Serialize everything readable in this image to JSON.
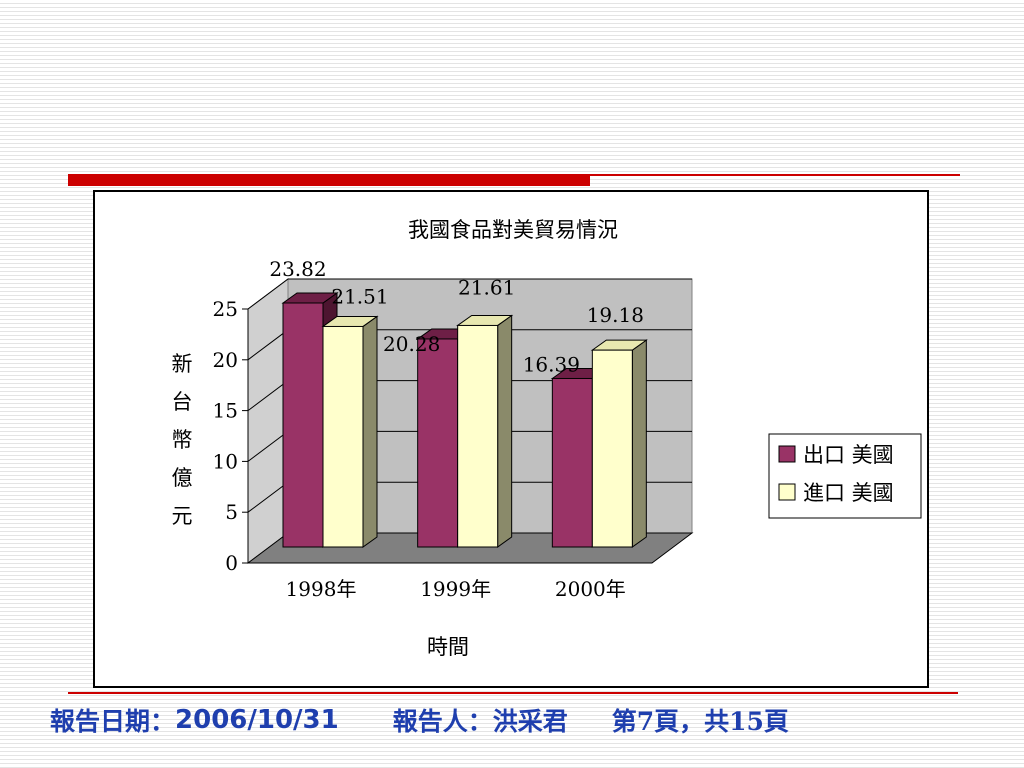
{
  "chart_data": {
    "type": "bar",
    "title": "我國食品對美貿易情況",
    "xlabel": "時間",
    "ylabel": "新台幣億元",
    "ylim": [
      0,
      25
    ],
    "yticks": [
      0,
      5,
      10,
      15,
      20,
      25
    ],
    "categories": [
      "1998年",
      "1999年",
      "2000年"
    ],
    "series": [
      {
        "name": "出口 美國",
        "values": [
          23.82,
          20.28,
          16.39
        ],
        "color": "#993366"
      },
      {
        "name": "進口 美國",
        "values": [
          21.51,
          21.61,
          19.18
        ],
        "color": "#ffffcc"
      }
    ],
    "legend_position": "right",
    "grid": true,
    "style": "3d-column"
  },
  "footer": {
    "date_label": "報告日期：",
    "date_value": "2006/10/31",
    "reporter": "報告人：洪采君",
    "page": "第7頁，共15頁"
  },
  "colors": {
    "accent": "#cc0000",
    "footer_text": "#1f3fae",
    "plot_wall": "#c0c0c0",
    "plot_floor": "#808080"
  }
}
